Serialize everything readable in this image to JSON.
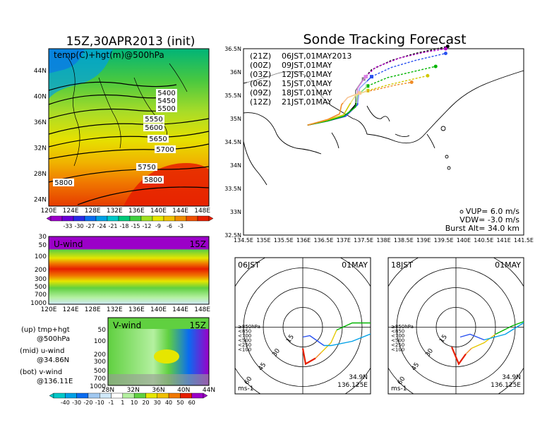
{
  "titles": {
    "left": "15Z,30APR2013 (init)",
    "right": "Sonde Tracking Forecast"
  },
  "map500": {
    "label": "temp(C)+hgt(m)@500hPa",
    "xticks": [
      "120E",
      "124E",
      "128E",
      "132E",
      "136E",
      "140E",
      "144E",
      "148E"
    ],
    "yticks": [
      "44N",
      "40N",
      "36N",
      "32N",
      "28N",
      "24N"
    ],
    "contour_labels": [
      "5400",
      "5450",
      "5500",
      "5550",
      "5600",
      "5650",
      "5700",
      "5750",
      "5800",
      "5800"
    ]
  },
  "temp_colorbar": {
    "labels": [
      "-33",
      "-30",
      "-27",
      "-24",
      "-21",
      "-18",
      "-15",
      "-12",
      "-9",
      "-6",
      "-3"
    ],
    "colors": [
      "#9b00c8",
      "#6a00d8",
      "#2a2ae6",
      "#0a6cf0",
      "#00a0e6",
      "#00c8c8",
      "#00c878",
      "#40d040",
      "#a0e020",
      "#e6e600",
      "#f0c000",
      "#f08c00",
      "#f05000",
      "#e61e00"
    ]
  },
  "uwind": {
    "label": "U-wind",
    "time": "15Z",
    "xticks": [
      "120E",
      "124E",
      "128E",
      "132E",
      "136E",
      "140E",
      "144E",
      "148E"
    ],
    "yticks": [
      "30",
      "50",
      "100",
      "200",
      "300",
      "500",
      "700",
      "1000"
    ]
  },
  "vwind": {
    "label": "V-wind",
    "time": "15Z",
    "xticks": [
      "28N",
      "32N",
      "36N",
      "40N",
      "44N"
    ],
    "yticks": [
      "50",
      "100",
      "200",
      "300",
      "500",
      "700",
      "1000"
    ]
  },
  "legend_notes": {
    "up1": "(up) tmp+hgt",
    "up2": "@500hPa",
    "mid1": "(mid) u-wind",
    "mid2": "@34.86N",
    "bot1": "(bot) v-wind",
    "bot2": "@136.11E"
  },
  "wind_colorbar": {
    "labels": [
      "-40",
      "-30",
      "-20",
      "-10",
      "-1",
      "1",
      "10",
      "20",
      "30",
      "40",
      "50",
      "60"
    ],
    "colors": [
      "#00c8c8",
      "#00a0e6",
      "#0a6cf0",
      "#a0c8f0",
      "#d0e8f8",
      "#ffffff",
      "#b4f0a0",
      "#60d040",
      "#e6e600",
      "#f0c000",
      "#f07800",
      "#e61e00",
      "#9b00c8"
    ]
  },
  "track_map": {
    "xticks": [
      "134.5E",
      "135E",
      "135.5E",
      "136E",
      "136.5E",
      "137E",
      "137.5E",
      "138E",
      "138.5E",
      "139E",
      "139.5E",
      "140E",
      "140.5E",
      "141E",
      "141.5E"
    ],
    "yticks": [
      "36.5N",
      "36N",
      "35.5N",
      "35N",
      "34.5N",
      "34N",
      "33.5N",
      "33N",
      "32.5N"
    ],
    "xlim": [
      134.5,
      141.5
    ],
    "ylim": [
      32.5,
      36.5
    ],
    "legend": [
      {
        "run": "(21Z)",
        "time": "06JST,01MAY2013",
        "color": "#000000"
      },
      {
        "run": "(00Z)",
        "time": "09JST,01MAY",
        "color": "#b400c8"
      },
      {
        "run": "(03Z)",
        "time": "12JST,01MAY",
        "color": "#2850f0"
      },
      {
        "run": "(06Z)",
        "time": "15JST,01MAY",
        "color": "#00b400"
      },
      {
        "run": "(09Z)",
        "time": "18JST,01MAY",
        "color": "#d2c800"
      },
      {
        "run": "(12Z)",
        "time": "21JST,01MAY",
        "color": "#f08c28"
      }
    ],
    "params": {
      "vup": "VUP= 6.0 m/s",
      "vdw": "VDW= -3.0 m/s",
      "burst": "Burst Alt= 34.0 km"
    }
  },
  "chart_data": [
    {
      "type": "line",
      "title": "Sonde Tracking Forecast",
      "xlim": [
        134.5,
        141.5
      ],
      "ylim": [
        32.5,
        36.5
      ],
      "series": [
        {
          "name": "(21Z) 06JST,01MAY2013",
          "x": [
            136.1,
            136.6,
            137.05,
            137.3,
            137.3,
            137.5,
            137.7,
            138.2,
            138.8,
            139.6
          ],
          "y": [
            34.86,
            34.95,
            35.05,
            35.3,
            35.6,
            35.85,
            36.05,
            36.25,
            36.4,
            36.55
          ]
        },
        {
          "name": "(00Z) 09JST,01MAY",
          "x": [
            136.1,
            136.6,
            137.05,
            137.35,
            137.35,
            137.55,
            137.8,
            138.4,
            139.0,
            139.55
          ],
          "y": [
            34.86,
            34.95,
            35.05,
            35.3,
            35.65,
            35.9,
            36.1,
            36.3,
            36.42,
            36.5
          ]
        },
        {
          "name": "(03Z) 12JST,01MAY",
          "x": [
            136.1,
            136.6,
            137.05,
            137.35,
            137.4,
            137.7,
            138.2,
            138.8,
            139.55
          ],
          "y": [
            34.86,
            34.95,
            35.05,
            35.3,
            35.65,
            35.9,
            36.1,
            36.25,
            36.4
          ]
        },
        {
          "name": "(06Z) 15JST,01MAY",
          "x": [
            136.1,
            136.6,
            137.0,
            137.3,
            137.35,
            137.6,
            138.1,
            138.7,
            139.3
          ],
          "y": [
            34.86,
            34.95,
            35.05,
            35.25,
            35.5,
            35.7,
            35.88,
            36.0,
            36.12
          ]
        },
        {
          "name": "(09Z) 18JST,01MAY",
          "x": [
            136.1,
            136.6,
            137.0,
            137.15,
            137.3,
            137.6,
            138.1,
            138.6,
            139.1
          ],
          "y": [
            34.86,
            34.97,
            35.08,
            35.3,
            35.5,
            35.6,
            35.72,
            35.82,
            35.92
          ]
        },
        {
          "name": "(12Z) 21JST,01MAY",
          "x": [
            136.1,
            136.6,
            136.9,
            136.95,
            137.1,
            137.4,
            137.8,
            138.3,
            138.7
          ],
          "y": [
            34.86,
            34.98,
            35.1,
            35.3,
            35.45,
            35.55,
            35.62,
            35.72,
            35.78
          ]
        }
      ]
    }
  ],
  "hodographs": [
    {
      "time": "06JST",
      "date": "01MAY",
      "lat": "34.9N",
      "lon": "136.125E",
      "unit": "ms-1",
      "rings": [
        "15",
        "30",
        "45",
        "60"
      ],
      "levels": [
        "≥850hPa",
        "<850",
        "<700",
        "<500",
        "<250",
        "<100"
      ]
    },
    {
      "time": "18JST",
      "date": "01MAY",
      "lat": "34.9N",
      "lon": "136.125E",
      "unit": "ms-1",
      "rings": [
        "15",
        "30",
        "45",
        "60"
      ],
      "levels": [
        "≥850hPa",
        "<850",
        "<700",
        "<500",
        "<250",
        "<100"
      ]
    }
  ]
}
